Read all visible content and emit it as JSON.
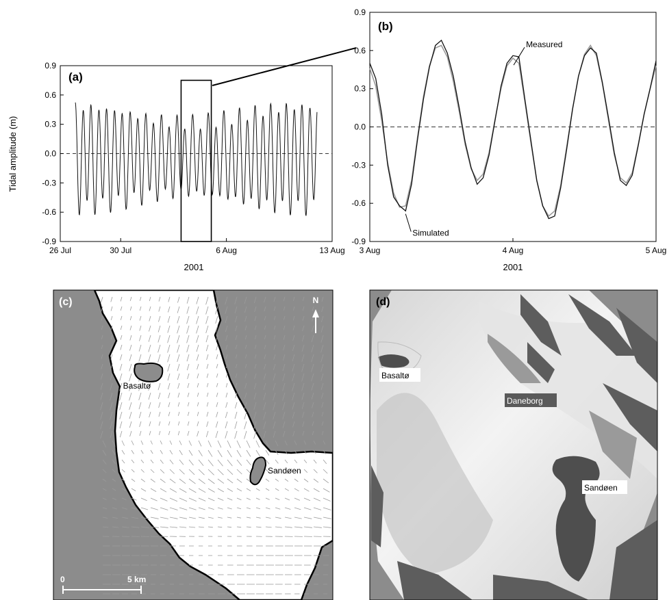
{
  "chart_data": [
    {
      "id": "a",
      "type": "line",
      "panel_label": "(a)",
      "ylabel": "Tidal amplitude (m)",
      "xlabel": "2001",
      "ylim": [
        -0.9,
        0.9
      ],
      "yticks": [
        -0.9,
        -0.6,
        -0.3,
        0.0,
        0.3,
        0.6,
        0.9
      ],
      "ytick_labels": [
        "-0.9",
        "-0.6",
        "-0.3",
        "0.0",
        "0.3",
        "0.6",
        "0.9"
      ],
      "xlim": [
        "2001-07-26",
        "2001-08-13"
      ],
      "xticks": [
        "2001-07-26",
        "2001-07-30",
        "2001-08-06",
        "2001-08-13"
      ],
      "xtick_labels": [
        "26 Jul",
        "30 Jul",
        "6 Aug",
        "13 Aug"
      ],
      "zero_line": true,
      "grid": false,
      "highlight_box": {
        "x": [
          "2001-08-03",
          "2001-08-05"
        ],
        "y": [
          -0.9,
          0.75
        ]
      },
      "series": [
        {
          "color": "#111111",
          "x_start": "2001-07-27",
          "x_end": "2001-08-12",
          "semidiurnal_amplitude": 0.52,
          "diurnal_amplitude": 0.08,
          "mean": -0.04
        }
      ]
    },
    {
      "id": "b",
      "type": "line",
      "panel_label": "(b)",
      "xlabel": "2001",
      "ylim": [
        -0.9,
        0.9
      ],
      "yticks": [
        -0.9,
        -0.6,
        -0.3,
        0.0,
        0.3,
        0.6,
        0.9
      ],
      "ytick_labels": [
        "-0.9",
        "-0.6",
        "-0.3",
        "0.0",
        "0.3",
        "0.6",
        "0.9"
      ],
      "xlim": [
        "2001-08-03",
        "2001-08-05"
      ],
      "xticks": [
        "2001-08-03",
        "2001-08-04",
        "2001-08-05"
      ],
      "xtick_labels": [
        "3 Aug",
        "4 Aug",
        "5 Aug"
      ],
      "zero_line": true,
      "grid": false,
      "series": [
        {
          "name": "Measured",
          "color": "#111111",
          "x": [
            "2001-08-03 00:00",
            "2001-08-03 01:00",
            "2001-08-03 02:00",
            "2001-08-03 03:00",
            "2001-08-03 04:00",
            "2001-08-03 05:00",
            "2001-08-03 06:00",
            "2001-08-03 07:00",
            "2001-08-03 08:00",
            "2001-08-03 09:00",
            "2001-08-03 10:00",
            "2001-08-03 11:00",
            "2001-08-03 12:00",
            "2001-08-03 13:00",
            "2001-08-03 14:00",
            "2001-08-03 15:00",
            "2001-08-03 16:00",
            "2001-08-03 17:00",
            "2001-08-03 18:00",
            "2001-08-03 19:00",
            "2001-08-03 20:00",
            "2001-08-03 21:00",
            "2001-08-03 22:00",
            "2001-08-03 23:00",
            "2001-08-04 00:00",
            "2001-08-04 01:00",
            "2001-08-04 02:00",
            "2001-08-04 03:00",
            "2001-08-04 04:00",
            "2001-08-04 05:00",
            "2001-08-04 06:00",
            "2001-08-04 07:00",
            "2001-08-04 08:00",
            "2001-08-04 09:00",
            "2001-08-04 10:00",
            "2001-08-04 11:00",
            "2001-08-04 12:00",
            "2001-08-04 13:00",
            "2001-08-04 14:00",
            "2001-08-04 15:00",
            "2001-08-04 16:00",
            "2001-08-04 17:00",
            "2001-08-04 18:00",
            "2001-08-04 19:00",
            "2001-08-04 20:00",
            "2001-08-04 21:00",
            "2001-08-04 22:00",
            "2001-08-04 23:00",
            "2001-08-05 00:00"
          ],
          "y": [
            0.5,
            0.38,
            0.1,
            -0.3,
            -0.55,
            -0.62,
            -0.66,
            -0.45,
            -0.1,
            0.22,
            0.47,
            0.64,
            0.68,
            0.58,
            0.4,
            0.15,
            -0.12,
            -0.32,
            -0.45,
            -0.4,
            -0.22,
            0.05,
            0.32,
            0.5,
            0.56,
            0.55,
            0.22,
            -0.1,
            -0.42,
            -0.62,
            -0.72,
            -0.7,
            -0.48,
            -0.18,
            0.14,
            0.4,
            0.56,
            0.62,
            0.58,
            0.35,
            0.08,
            -0.2,
            -0.42,
            -0.46,
            -0.38,
            -0.15,
            0.1,
            0.3,
            0.52
          ]
        },
        {
          "name": "Simulated",
          "color": "#9a9a9a",
          "x": [
            "2001-08-03 00:00",
            "2001-08-03 01:00",
            "2001-08-03 02:00",
            "2001-08-03 03:00",
            "2001-08-03 04:00",
            "2001-08-03 05:00",
            "2001-08-03 06:00",
            "2001-08-03 07:00",
            "2001-08-03 08:00",
            "2001-08-03 09:00",
            "2001-08-03 10:00",
            "2001-08-03 11:00",
            "2001-08-03 12:00",
            "2001-08-03 13:00",
            "2001-08-03 14:00",
            "2001-08-03 15:00",
            "2001-08-03 16:00",
            "2001-08-03 17:00",
            "2001-08-03 18:00",
            "2001-08-03 19:00",
            "2001-08-03 20:00",
            "2001-08-03 21:00",
            "2001-08-03 22:00",
            "2001-08-03 23:00",
            "2001-08-04 00:00",
            "2001-08-04 01:00",
            "2001-08-04 02:00",
            "2001-08-04 03:00",
            "2001-08-04 04:00",
            "2001-08-04 05:00",
            "2001-08-04 06:00",
            "2001-08-04 07:00",
            "2001-08-04 08:00",
            "2001-08-04 09:00",
            "2001-08-04 10:00",
            "2001-08-04 11:00",
            "2001-08-04 12:00",
            "2001-08-04 13:00",
            "2001-08-04 14:00",
            "2001-08-04 15:00",
            "2001-08-04 16:00",
            "2001-08-04 17:00",
            "2001-08-04 18:00",
            "2001-08-04 19:00",
            "2001-08-04 20:00",
            "2001-08-04 21:00",
            "2001-08-04 22:00",
            "2001-08-04 23:00",
            "2001-08-05 00:00"
          ],
          "y": [
            0.46,
            0.32,
            0.05,
            -0.28,
            -0.52,
            -0.63,
            -0.62,
            -0.42,
            -0.08,
            0.24,
            0.48,
            0.62,
            0.64,
            0.55,
            0.36,
            0.12,
            -0.14,
            -0.33,
            -0.42,
            -0.37,
            -0.2,
            0.06,
            0.3,
            0.48,
            0.54,
            0.5,
            0.2,
            -0.12,
            -0.42,
            -0.62,
            -0.7,
            -0.66,
            -0.46,
            -0.16,
            0.14,
            0.4,
            0.57,
            0.64,
            0.56,
            0.34,
            0.06,
            -0.22,
            -0.4,
            -0.44,
            -0.36,
            -0.14,
            0.1,
            0.3,
            0.48
          ]
        }
      ],
      "annotations": [
        {
          "text": "Measured",
          "x": "2001-08-04 01:30",
          "y": 0.55
        },
        {
          "text": "Simulated",
          "x": "2001-08-03 06:00",
          "y": -0.64
        }
      ]
    }
  ],
  "map_c": {
    "panel_label": "(c)",
    "north_label": "N",
    "scale_start": "0",
    "scale_end": "5 km",
    "land_color": "#8c8c8c",
    "water_color": "#ffffff",
    "labels": {
      "basalto": "Basaltø",
      "sandoen": "Sandøen"
    }
  },
  "photo_d": {
    "panel_label": "(d)",
    "labels": {
      "basalto": "Basaltø",
      "daneborg": "Daneborg",
      "sandoen": "Sandøen"
    }
  }
}
